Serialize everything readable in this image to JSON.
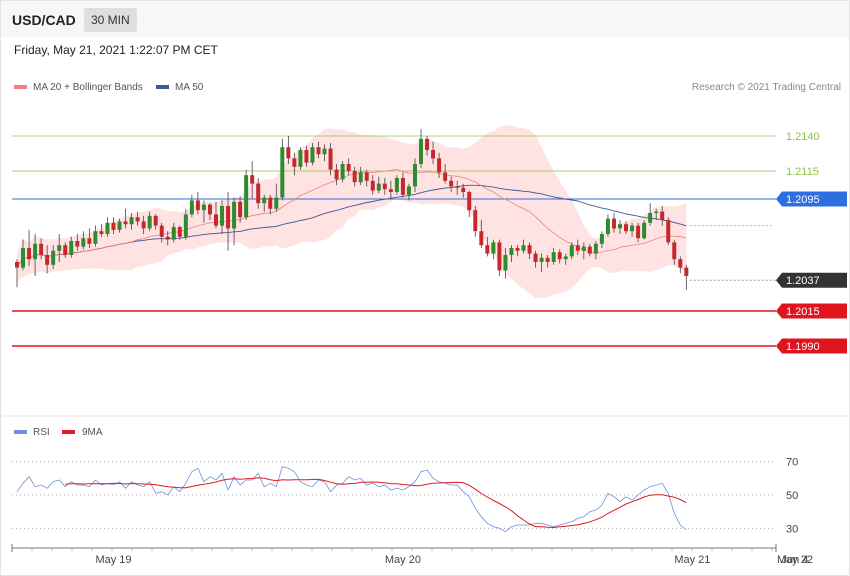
{
  "header": {
    "pair": "USD/CAD",
    "timeframe": "30 MIN",
    "datetime": "Friday, May 21, 2021 1:22:07 PM CET"
  },
  "credit": "Research © 2021 Trading Central",
  "legend": {
    "price": [
      "MA 20 + Bollinger Bands",
      "MA 50"
    ],
    "rsi": [
      "RSI",
      "9MA"
    ]
  },
  "colors": {
    "ma20": "#f08080",
    "ma50": "#3d5a96",
    "rsi": "#6f8fe0",
    "rsi_ma": "#e01c1c",
    "bands_fill": "#ffdede",
    "up": "#2e8b2e",
    "down": "#c8282c",
    "resistance_green": "#8bc34a",
    "pivot_blue": "#2d6fe0",
    "support_red": "#e0141c",
    "arrow": "#3a63a6"
  },
  "chart_data": [
    {
      "type": "candlestick",
      "ylim": [
        1.1965,
        1.2165
      ],
      "xlim": [
        0,
        150
      ],
      "x_ticks": [
        {
          "x": 16,
          "label": "May 19"
        },
        {
          "x": 64,
          "label": "May 20"
        },
        {
          "x": 112,
          "label": "May 21"
        },
        {
          "x": 139,
          "label": "May 22"
        },
        {
          "x": 152,
          "label": "Jun 4"
        }
      ],
      "levels": [
        {
          "value": 1.214,
          "label": "1.2140",
          "style": "resistance"
        },
        {
          "value": 1.2115,
          "label": "1.2115",
          "style": "resistance"
        },
        {
          "value": 1.2095,
          "label": "1.2095",
          "style": "pivot"
        },
        {
          "value": 1.2037,
          "label": "1.2037",
          "style": "current"
        },
        {
          "value": 1.2015,
          "label": "1.2015",
          "style": "support"
        },
        {
          "value": 1.199,
          "label": "1.1990",
          "style": "support"
        }
      ],
      "arrow": {
        "from": [
          139,
          1.2035
        ],
        "to": [
          152,
          1.1992
        ]
      },
      "candles": [
        [
          0,
          1.205,
          1.2052,
          1.2032,
          1.2046
        ],
        [
          1,
          1.2046,
          1.2066,
          1.2044,
          1.206
        ],
        [
          2,
          1.206,
          1.2073,
          1.2047,
          1.2052
        ],
        [
          3,
          1.2052,
          1.207,
          1.204,
          1.2063
        ],
        [
          4,
          1.2063,
          1.2067,
          1.2052,
          1.2055
        ],
        [
          5,
          1.2055,
          1.2062,
          1.2042,
          1.2048
        ],
        [
          6,
          1.2048,
          1.2062,
          1.2045,
          1.2058
        ],
        [
          7,
          1.2058,
          1.207,
          1.205,
          1.2062
        ],
        [
          8,
          1.2062,
          1.2064,
          1.2053,
          1.2055
        ],
        [
          9,
          1.2055,
          1.2068,
          1.2053,
          1.2065
        ],
        [
          10,
          1.2065,
          1.207,
          1.2058,
          1.2061
        ],
        [
          11,
          1.2061,
          1.2072,
          1.2059,
          1.2067
        ],
        [
          12,
          1.2067,
          1.2074,
          1.206,
          1.2063
        ],
        [
          13,
          1.2063,
          1.2076,
          1.2061,
          1.2072
        ],
        [
          14,
          1.2072,
          1.2077,
          1.2068,
          1.207
        ],
        [
          15,
          1.207,
          1.2082,
          1.2068,
          1.2078
        ],
        [
          16,
          1.2078,
          1.2082,
          1.207,
          1.2073
        ],
        [
          17,
          1.2073,
          1.2081,
          1.2071,
          1.2079
        ],
        [
          18,
          1.2079,
          1.2088,
          1.2074,
          1.2077
        ],
        [
          19,
          1.2077,
          1.2085,
          1.2073,
          1.2082
        ],
        [
          20,
          1.2082,
          1.2086,
          1.2076,
          1.2079
        ],
        [
          21,
          1.2079,
          1.2083,
          1.207,
          1.2074
        ],
        [
          22,
          1.2074,
          1.2086,
          1.2072,
          1.2083
        ],
        [
          23,
          1.2083,
          1.2084,
          1.2073,
          1.2076
        ],
        [
          24,
          1.2076,
          1.2078,
          1.2064,
          1.2068
        ],
        [
          25,
          1.2068,
          1.2072,
          1.2062,
          1.2066
        ],
        [
          26,
          1.2066,
          1.2078,
          1.2064,
          1.2075
        ],
        [
          27,
          1.2075,
          1.2076,
          1.2066,
          1.2068
        ],
        [
          28,
          1.2068,
          1.2088,
          1.2066,
          1.2084
        ],
        [
          29,
          1.2084,
          1.2098,
          1.2082,
          1.2094
        ],
        [
          30,
          1.2094,
          1.21,
          1.2084,
          1.2087
        ],
        [
          31,
          1.2087,
          1.2094,
          1.2078,
          1.2091
        ],
        [
          32,
          1.2091,
          1.2092,
          1.208,
          1.2084
        ],
        [
          33,
          1.2084,
          1.2093,
          1.2074,
          1.2076
        ],
        [
          34,
          1.2076,
          1.2094,
          1.207,
          1.209
        ],
        [
          35,
          1.209,
          1.21,
          1.2058,
          1.2074
        ],
        [
          36,
          1.2074,
          1.2096,
          1.2062,
          1.2093
        ],
        [
          37,
          1.2093,
          1.2097,
          1.2078,
          1.2082
        ],
        [
          38,
          1.2082,
          1.2116,
          1.208,
          1.2112
        ],
        [
          39,
          1.2112,
          1.2122,
          1.2095,
          1.2106
        ],
        [
          40,
          1.2106,
          1.211,
          1.2088,
          1.2092
        ],
        [
          41,
          1.2092,
          1.2098,
          1.2086,
          1.2096
        ],
        [
          42,
          1.2096,
          1.2098,
          1.2084,
          1.2088
        ],
        [
          43,
          1.2088,
          1.2106,
          1.2086,
          1.2096
        ],
        [
          44,
          1.2096,
          1.2138,
          1.2094,
          1.2132
        ],
        [
          45,
          1.2132,
          1.214,
          1.212,
          1.2124
        ],
        [
          46,
          1.2124,
          1.2128,
          1.2112,
          1.2118
        ],
        [
          47,
          1.2118,
          1.2132,
          1.2116,
          1.213
        ],
        [
          48,
          1.213,
          1.2133,
          1.2118,
          1.2121
        ],
        [
          49,
          1.2121,
          1.2135,
          1.2119,
          1.2132
        ],
        [
          50,
          1.2132,
          1.2136,
          1.2124,
          1.2127
        ],
        [
          51,
          1.2127,
          1.2134,
          1.2122,
          1.2131
        ],
        [
          52,
          1.2131,
          1.2135,
          1.2112,
          1.2116
        ],
        [
          53,
          1.2116,
          1.212,
          1.2105,
          1.2109
        ],
        [
          54,
          1.2109,
          1.2122,
          1.2107,
          1.212
        ],
        [
          55,
          1.212,
          1.2124,
          1.2112,
          1.2115
        ],
        [
          56,
          1.2115,
          1.2118,
          1.2104,
          1.2107
        ],
        [
          57,
          1.2107,
          1.2118,
          1.2105,
          1.2114
        ],
        [
          58,
          1.2114,
          1.2116,
          1.2104,
          1.2108
        ],
        [
          59,
          1.2108,
          1.2112,
          1.2098,
          1.2101
        ],
        [
          60,
          1.2101,
          1.2111,
          1.2099,
          1.2106
        ],
        [
          61,
          1.2106,
          1.211,
          1.2098,
          1.2102
        ],
        [
          62,
          1.2102,
          1.2108,
          1.2095,
          1.21
        ],
        [
          63,
          1.21,
          1.2112,
          1.2098,
          1.211
        ],
        [
          64,
          1.211,
          1.2114,
          1.2096,
          1.2098
        ],
        [
          65,
          1.2098,
          1.2106,
          1.2094,
          1.2104
        ],
        [
          66,
          1.2104,
          1.2124,
          1.21,
          1.212
        ],
        [
          67,
          1.212,
          1.2145,
          1.2117,
          1.2138
        ],
        [
          68,
          1.2138,
          1.214,
          1.2126,
          1.213
        ],
        [
          69,
          1.213,
          1.2136,
          1.212,
          1.2124
        ],
        [
          70,
          1.2124,
          1.2128,
          1.211,
          1.2114
        ],
        [
          71,
          1.2114,
          1.212,
          1.2106,
          1.2108
        ],
        [
          72,
          1.2108,
          1.2111,
          1.21,
          1.2104
        ],
        [
          73,
          1.2104,
          1.2108,
          1.2098,
          1.2103
        ],
        [
          74,
          1.2103,
          1.2106,
          1.2096,
          1.21
        ],
        [
          75,
          1.21,
          1.2101,
          1.2082,
          1.2087
        ],
        [
          76,
          1.2087,
          1.209,
          1.2068,
          1.2072
        ],
        [
          77,
          1.2072,
          1.208,
          1.206,
          1.2062
        ],
        [
          78,
          1.2062,
          1.2068,
          1.2054,
          1.2056
        ],
        [
          79,
          1.2056,
          1.2066,
          1.2052,
          1.2064
        ],
        [
          80,
          1.2064,
          1.2066,
          1.204,
          1.2044
        ],
        [
          81,
          1.2044,
          1.206,
          1.2038,
          1.2055
        ],
        [
          82,
          1.2055,
          1.2062,
          1.205,
          1.206
        ],
        [
          83,
          1.206,
          1.2062,
          1.2054,
          1.2058
        ],
        [
          84,
          1.2058,
          1.2066,
          1.2056,
          1.2062
        ],
        [
          85,
          1.2062,
          1.2064,
          1.2052,
          1.2056
        ],
        [
          86,
          1.2056,
          1.2058,
          1.2046,
          1.205
        ],
        [
          87,
          1.205,
          1.2056,
          1.2043,
          1.2053
        ],
        [
          88,
          1.2053,
          1.2055,
          1.2046,
          1.205
        ],
        [
          89,
          1.205,
          1.206,
          1.2048,
          1.2057
        ],
        [
          90,
          1.2057,
          1.2059,
          1.2049,
          1.2052
        ],
        [
          91,
          1.2052,
          1.2056,
          1.2048,
          1.2054
        ],
        [
          92,
          1.2054,
          1.2064,
          1.2052,
          1.2062
        ],
        [
          93,
          1.2062,
          1.2066,
          1.2055,
          1.2058
        ],
        [
          94,
          1.2058,
          1.2064,
          1.2052,
          1.2061
        ],
        [
          95,
          1.2061,
          1.2063,
          1.2054,
          1.2056
        ],
        [
          96,
          1.2056,
          1.2065,
          1.2052,
          1.2063
        ],
        [
          97,
          1.2063,
          1.2072,
          1.206,
          1.207
        ],
        [
          98,
          1.207,
          1.2084,
          1.2068,
          1.2081
        ],
        [
          99,
          1.2081,
          1.2085,
          1.2071,
          1.2074
        ],
        [
          100,
          1.2074,
          1.208,
          1.207,
          1.2077
        ],
        [
          101,
          1.2077,
          1.2079,
          1.207,
          1.2072
        ],
        [
          102,
          1.2072,
          1.2078,
          1.2068,
          1.2076
        ],
        [
          103,
          1.2076,
          1.2078,
          1.2064,
          1.2067
        ],
        [
          104,
          1.2067,
          1.208,
          1.2066,
          1.2078
        ],
        [
          105,
          1.2078,
          1.2092,
          1.2076,
          1.2085
        ],
        [
          106,
          1.2085,
          1.2088,
          1.208,
          1.2086
        ],
        [
          107,
          1.2086,
          1.209,
          1.2076,
          1.208
        ],
        [
          108,
          1.208,
          1.2082,
          1.2062,
          1.2064
        ],
        [
          109,
          1.2064,
          1.2066,
          1.2048,
          1.2052
        ],
        [
          110,
          1.2052,
          1.2054,
          1.2042,
          1.2046
        ],
        [
          111,
          1.2046,
          1.2048,
          1.203,
          1.204
        ]
      ]
    },
    {
      "type": "line",
      "series": [
        {
          "name": "RSI"
        },
        {
          "name": "9MA"
        }
      ],
      "ylim": [
        20,
        80
      ],
      "y_ticks": [
        70,
        50,
        30
      ],
      "grid": "dotted",
      "rsi": [
        52,
        57,
        61,
        55,
        56,
        54,
        58,
        59,
        55,
        58,
        56,
        56,
        55,
        59,
        56,
        57,
        56,
        58,
        54,
        58,
        56,
        55,
        58,
        51,
        52,
        50,
        55,
        52,
        57,
        64,
        66,
        58,
        61,
        59,
        63,
        53,
        61,
        56,
        59,
        59,
        63,
        55,
        57,
        55,
        67,
        66,
        64,
        58,
        56,
        55,
        59,
        58,
        52,
        56,
        57,
        61,
        59,
        60,
        56,
        57,
        55,
        56,
        53,
        54,
        53,
        55,
        58,
        64,
        65,
        60,
        58,
        57,
        56,
        56,
        52,
        49,
        42,
        37,
        33,
        31,
        30,
        28,
        31,
        32,
        32,
        32,
        33,
        33,
        32,
        31,
        32,
        33,
        34,
        36,
        37,
        40,
        41,
        44,
        51,
        49,
        46,
        49,
        47,
        50,
        53,
        55,
        56,
        57,
        51,
        39,
        32,
        29
      ],
      "ma": [
        null,
        null,
        null,
        null,
        null,
        null,
        null,
        null,
        56.4,
        56.7,
        56.7,
        56.6,
        56.8,
        56.8,
        56.8,
        56.8,
        57.0,
        56.9,
        56.6,
        56.9,
        56.8,
        56.6,
        56.5,
        56.1,
        55.5,
        54.9,
        54.7,
        54.4,
        54.3,
        55.1,
        55.9,
        56.4,
        57.0,
        57.8,
        58.8,
        59.4,
        59.8,
        59.4,
        59.7,
        59.9,
        60.4,
        60.0,
        59.2,
        58.6,
        59.1,
        59.0,
        59.2,
        59.2,
        59.2,
        59.3,
        59.4,
        58.7,
        57.7,
        56.8,
        56.4,
        56.7,
        56.9,
        57.6,
        57.6,
        57.8,
        57.6,
        57.4,
        56.8,
        56.7,
        56.3,
        56.0,
        55.5,
        55.7,
        56.4,
        57.0,
        57.2,
        57.3,
        57.5,
        57.6,
        57.3,
        55.8,
        53.5,
        50.9,
        48.8,
        46.7,
        44.9,
        42.9,
        40.6,
        37.6,
        35.0,
        32.6,
        31.0,
        30.9,
        30.6,
        30.5,
        31.0,
        31.3,
        31.7,
        32.2,
        32.9,
        33.9,
        35.2,
        36.7,
        38.9,
        40.8,
        42.6,
        44.6,
        46.0,
        47.3,
        48.8,
        49.9,
        50.2,
        50.1,
        49.4,
        48.7,
        47.3,
        45.4
      ]
    }
  ]
}
